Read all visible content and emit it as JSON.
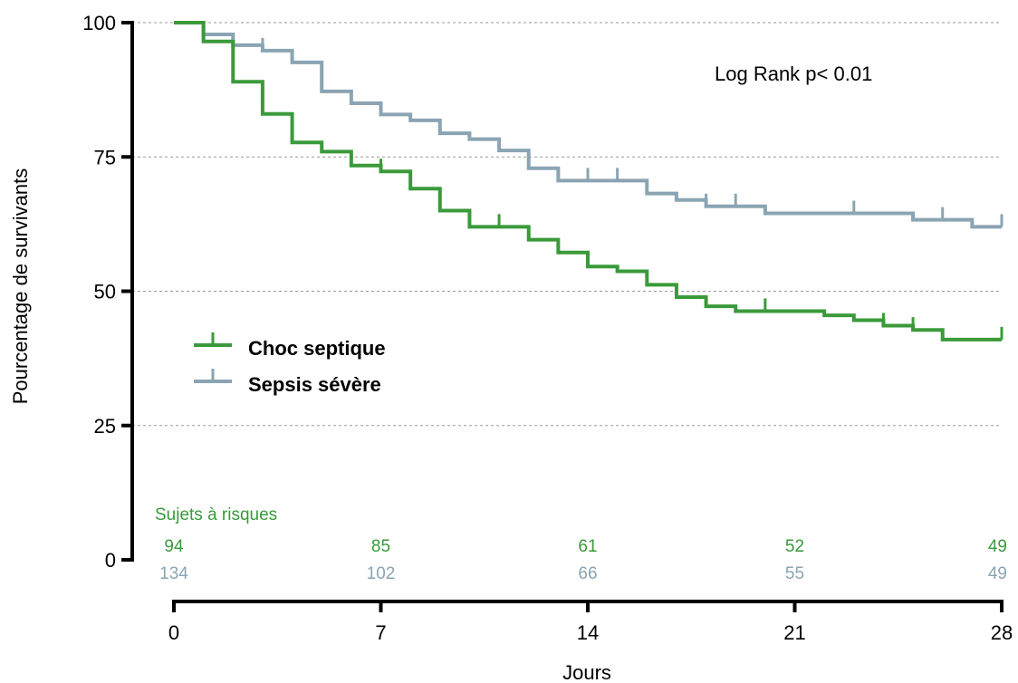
{
  "chart_data": {
    "type": "line",
    "subtype": "kaplan-meier",
    "xlabel": "Jours",
    "ylabel": "Pourcentage de survivants",
    "xlim": [
      0,
      28
    ],
    "ylim": [
      0,
      100
    ],
    "x_ticks": [
      "0",
      "7",
      "14",
      "21",
      "28"
    ],
    "x_tick_values": [
      0,
      7,
      14,
      21,
      28
    ],
    "y_ticks": [
      "0",
      "25",
      "50",
      "75",
      "100"
    ],
    "y_tick_values": [
      0,
      25,
      50,
      75,
      100
    ],
    "grid": "horizontal dashed",
    "legend_placement": "middle-left",
    "annotation": "Log Rank p< 0.01",
    "series": [
      {
        "name": "Choc septique",
        "color": "#3a9a3a",
        "steps": [
          [
            0,
            100
          ],
          [
            1,
            96.5
          ],
          [
            2,
            89
          ],
          [
            3,
            83
          ],
          [
            4,
            77.7
          ],
          [
            5,
            76
          ],
          [
            6,
            73.4
          ],
          [
            7,
            72.3
          ],
          [
            8,
            69.1
          ],
          [
            9,
            65
          ],
          [
            10,
            62
          ],
          [
            12,
            59.6
          ],
          [
            13,
            57.2
          ],
          [
            14,
            54.6
          ],
          [
            15,
            53.7
          ],
          [
            16,
            51.2
          ],
          [
            17,
            48.9
          ],
          [
            18,
            47.2
          ],
          [
            19,
            46.3
          ],
          [
            22,
            45.5
          ],
          [
            23,
            44.6
          ],
          [
            24,
            43.6
          ],
          [
            25,
            42.8
          ],
          [
            26,
            41
          ],
          [
            28,
            41
          ]
        ],
        "censored": [
          [
            4,
            77.7
          ],
          [
            7,
            72.3
          ],
          [
            11,
            62
          ],
          [
            20,
            46.3
          ],
          [
            24,
            43.6
          ],
          [
            25,
            42.8
          ],
          [
            28,
            41
          ]
        ]
      },
      {
        "name": "Sepsis sévère",
        "color": "#8aa4b3",
        "steps": [
          [
            0,
            100
          ],
          [
            1,
            97.8
          ],
          [
            2,
            95.8
          ],
          [
            3,
            94.8
          ],
          [
            4,
            92.6
          ],
          [
            5,
            87.2
          ],
          [
            6,
            85
          ],
          [
            7,
            82.9
          ],
          [
            8,
            81.8
          ],
          [
            9,
            79.4
          ],
          [
            10,
            78.3
          ],
          [
            11,
            76.2
          ],
          [
            12,
            72.9
          ],
          [
            13,
            70.6
          ],
          [
            16,
            68.2
          ],
          [
            17,
            67
          ],
          [
            18,
            65.8
          ],
          [
            20,
            64.5
          ],
          [
            25,
            63.3
          ],
          [
            27,
            62
          ],
          [
            28,
            62
          ]
        ],
        "censored": [
          [
            1,
            97.8
          ],
          [
            3,
            94.8
          ],
          [
            7,
            82.9
          ],
          [
            14,
            70.6
          ],
          [
            15,
            70.6
          ],
          [
            18,
            65.8
          ],
          [
            19,
            65.8
          ],
          [
            23,
            64.5
          ],
          [
            26,
            63.3
          ],
          [
            28,
            62
          ]
        ]
      }
    ],
    "at_risk": {
      "title": "Sujets à risques",
      "days": [
        0,
        7,
        14,
        21,
        28
      ],
      "rows": [
        {
          "series": "Choc septique",
          "color": "#3a9a3a",
          "counts": [
            "94",
            "85",
            "61",
            "52",
            "49"
          ]
        },
        {
          "series": "Sepsis sévère",
          "color": "#8aa4b3",
          "counts": [
            "134",
            "102",
            "66",
            "55",
            "49"
          ]
        }
      ]
    }
  }
}
